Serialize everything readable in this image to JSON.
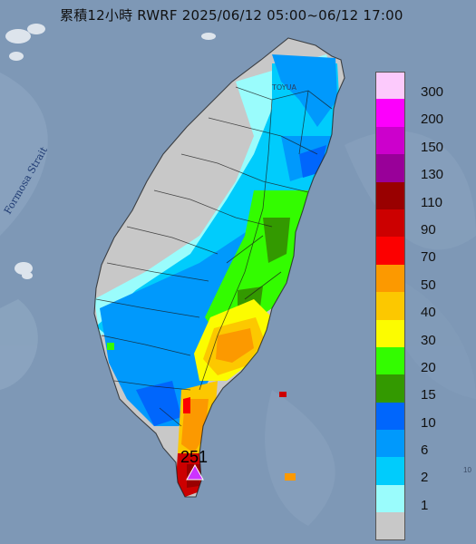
{
  "title": "累積12小時 RWRF 2025/06/12 05:00~06/12 17:00",
  "map_labels": {
    "strait": "Formosa Strait",
    "city": "TOYUA",
    "max_value": "251",
    "edge_text": "10"
  },
  "legend": {
    "items": [
      {
        "label": "300",
        "color": "#fccafc"
      },
      {
        "label": "200",
        "color": "#fc00fc"
      },
      {
        "label": "150",
        "color": "#cc00cc"
      },
      {
        "label": "130",
        "color": "#990099"
      },
      {
        "label": "110",
        "color": "#990000"
      },
      {
        "label": "90",
        "color": "#cc0000"
      },
      {
        "label": "70",
        "color": "#fc0000"
      },
      {
        "label": "50",
        "color": "#fc9900"
      },
      {
        "label": "40",
        "color": "#fcc800"
      },
      {
        "label": "30",
        "color": "#fcfc00"
      },
      {
        "label": "20",
        "color": "#33fc00"
      },
      {
        "label": "15",
        "color": "#339900"
      },
      {
        "label": "10",
        "color": "#0066fc"
      },
      {
        "label": "6",
        "color": "#0099fc"
      },
      {
        "label": "2",
        "color": "#00ccfc"
      },
      {
        "label": "1",
        "color": "#9afcfc"
      },
      {
        "label": "",
        "color": "#c8c8c8"
      }
    ]
  }
}
